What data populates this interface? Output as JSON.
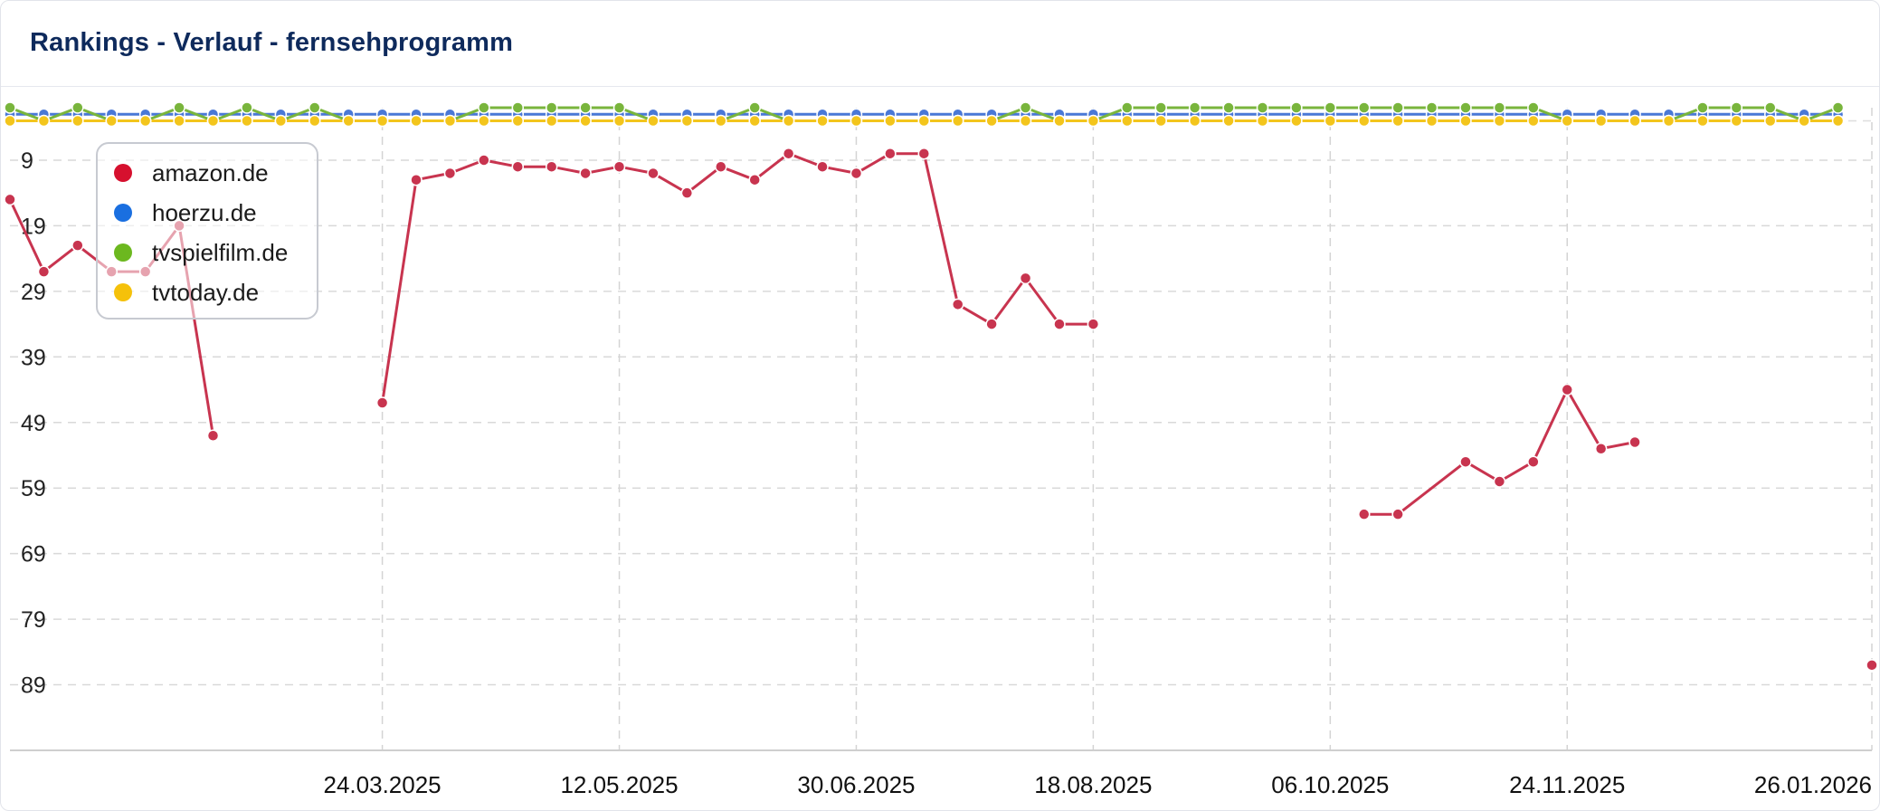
{
  "title": "Rankings - Verlauf - fernsehprogramm",
  "chart_data": {
    "type": "line",
    "title": "Rankings - Verlauf - fernsehprogramm",
    "xlabel": "",
    "ylabel": "",
    "y_inverted": true,
    "ylim": [
      1,
      99
    ],
    "yticks": [
      9,
      19,
      29,
      39,
      49,
      59,
      69,
      79,
      89
    ],
    "xlim": [
      "2025-01-06",
      "2026-01-26"
    ],
    "xticks": [
      "24.03.2025",
      "12.05.2025",
      "30.06.2025",
      "18.08.2025",
      "06.10.2025",
      "24.11.2025",
      "26.01.2026"
    ],
    "grid": true,
    "legend_position": "top-left",
    "series": [
      {
        "name": "amazon.de",
        "color": "#c8344f",
        "legend_color": "#d6102e",
        "points": [
          [
            "2025-01-06",
            15
          ],
          [
            "2025-01-13",
            26
          ],
          [
            "2025-01-20",
            22
          ],
          [
            "2025-01-27",
            26
          ],
          [
            "2025-02-03",
            26
          ],
          [
            "2025-02-10",
            19
          ],
          [
            "2025-02-17",
            51
          ],
          null,
          [
            "2025-03-24",
            46
          ],
          [
            "2025-03-31",
            12
          ],
          [
            "2025-04-07",
            11
          ],
          [
            "2025-04-14",
            9
          ],
          [
            "2025-04-21",
            10
          ],
          [
            "2025-04-28",
            10
          ],
          [
            "2025-05-05",
            11
          ],
          [
            "2025-05-12",
            10
          ],
          [
            "2025-05-19",
            11
          ],
          [
            "2025-05-26",
            14
          ],
          [
            "2025-06-02",
            10
          ],
          [
            "2025-06-09",
            12
          ],
          [
            "2025-06-16",
            8
          ],
          [
            "2025-06-23",
            10
          ],
          [
            "2025-06-30",
            11
          ],
          [
            "2025-07-07",
            8
          ],
          [
            "2025-07-14",
            8
          ],
          [
            "2025-07-21",
            31
          ],
          [
            "2025-07-28",
            34
          ],
          [
            "2025-08-04",
            27
          ],
          [
            "2025-08-11",
            34
          ],
          [
            "2025-08-18",
            34
          ],
          null,
          [
            "2025-10-13",
            63
          ],
          [
            "2025-10-20",
            63
          ],
          [
            "2025-11-03",
            55
          ],
          [
            "2025-11-10",
            58
          ],
          [
            "2025-11-17",
            55
          ],
          [
            "2025-11-24",
            44
          ],
          [
            "2025-12-01",
            53
          ],
          [
            "2025-12-08",
            52
          ],
          null,
          [
            "2026-01-26",
            86
          ]
        ]
      },
      {
        "name": "hoerzu.de",
        "color": "#4a78d6",
        "legend_color": "#1a6fe0",
        "points_weekly_from": "2025-01-06",
        "values": [
          2,
          2,
          2,
          2,
          2,
          2,
          2,
          2,
          2,
          2,
          2,
          2,
          2,
          2,
          2,
          2,
          2,
          2,
          2,
          2,
          2,
          2,
          2,
          2,
          2,
          2,
          2,
          2,
          2,
          2,
          2,
          2,
          2,
          2,
          2,
          2,
          2,
          2,
          2,
          2,
          2,
          2,
          2,
          2,
          2,
          2,
          2,
          2,
          2,
          2,
          2,
          2,
          2,
          2,
          2
        ]
      },
      {
        "name": "tvspielfilm.de",
        "color": "#79b53c",
        "legend_color": "#6cb81f",
        "points_weekly_from": "2025-01-06",
        "values": [
          1,
          3,
          1,
          3,
          3,
          1,
          3,
          1,
          3,
          1,
          3,
          3,
          3,
          3,
          1,
          1,
          1,
          1,
          1,
          3,
          3,
          3,
          1,
          3,
          3,
          3,
          3,
          3,
          3,
          3,
          1,
          3,
          3,
          1,
          1,
          1,
          1,
          1,
          1,
          1,
          1,
          1,
          1,
          1,
          1,
          1,
          3,
          3,
          3,
          3,
          1,
          1,
          1,
          3,
          1
        ]
      },
      {
        "name": "tvtoday.de",
        "color": "#f3c51c",
        "legend_color": "#f5c10a",
        "points_weekly_from": "2025-01-06",
        "values": [
          3,
          3,
          3,
          3,
          3,
          3,
          3,
          3,
          3,
          3,
          3,
          3,
          3,
          3,
          3,
          3,
          3,
          3,
          3,
          3,
          3,
          3,
          3,
          3,
          3,
          3,
          3,
          3,
          3,
          3,
          3,
          3,
          3,
          3,
          3,
          3,
          3,
          3,
          3,
          3,
          3,
          3,
          3,
          3,
          3,
          3,
          3,
          3,
          3,
          3,
          3,
          3,
          3,
          3,
          3
        ]
      }
    ]
  }
}
